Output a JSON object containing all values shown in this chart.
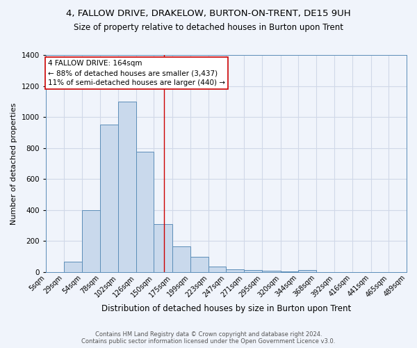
{
  "title": "4, FALLOW DRIVE, DRAKELOW, BURTON-ON-TRENT, DE15 9UH",
  "subtitle": "Size of property relative to detached houses in Burton upon Trent",
  "xlabel": "Distribution of detached houses by size in Burton upon Trent",
  "ylabel": "Number of detached properties",
  "footer1": "Contains HM Land Registry data © Crown copyright and database right 2024.",
  "footer2": "Contains public sector information licensed under the Open Government Licence v3.0.",
  "bins": [
    "5sqm",
    "29sqm",
    "54sqm",
    "78sqm",
    "102sqm",
    "126sqm",
    "150sqm",
    "175sqm",
    "199sqm",
    "223sqm",
    "247sqm",
    "271sqm",
    "295sqm",
    "320sqm",
    "344sqm",
    "368sqm",
    "392sqm",
    "416sqm",
    "441sqm",
    "465sqm",
    "489sqm"
  ],
  "bin_edges": [
    5,
    29,
    54,
    78,
    102,
    126,
    150,
    175,
    199,
    223,
    247,
    271,
    295,
    320,
    344,
    368,
    392,
    416,
    441,
    465,
    489
  ],
  "counts": [
    0,
    65,
    400,
    950,
    1100,
    775,
    310,
    165,
    100,
    38,
    16,
    14,
    8,
    5,
    13,
    0,
    0,
    0,
    0,
    0
  ],
  "bar_color": "#c9d9ec",
  "bar_edge_color": "#5b8db8",
  "grid_color": "#d0d8e8",
  "bg_color": "#f0f4fb",
  "vline_x": 164,
  "vline_color": "#cc0000",
  "annotation_text_line1": "4 FALLOW DRIVE: 164sqm",
  "annotation_text_line2": "← 88% of detached houses are smaller (3,437)",
  "annotation_text_line3": "11% of semi-detached houses are larger (440) →",
  "annotation_box_color": "#ffffff",
  "annotation_box_edge": "#cc0000",
  "ylim": [
    0,
    1400
  ],
  "xlim_min": 5,
  "xlim_max": 489,
  "title_fontsize": 9.5,
  "subtitle_fontsize": 8.5,
  "ylabel_fontsize": 8.0,
  "xlabel_fontsize": 8.5,
  "tick_fontsize": 7.0,
  "ann_fontsize": 7.5,
  "footer_fontsize": 6.0
}
